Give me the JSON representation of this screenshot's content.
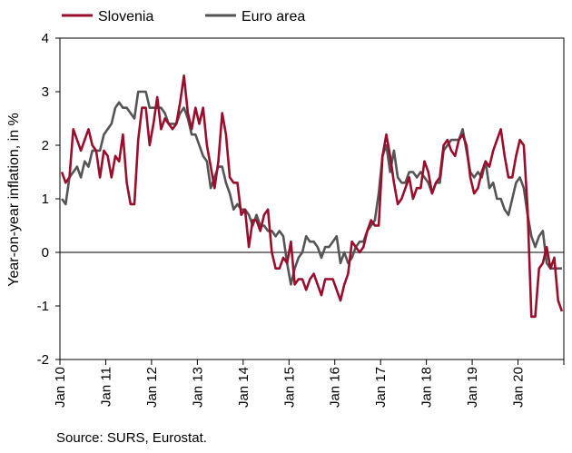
{
  "chart_data": {
    "type": "line",
    "ylabel": "Year-on-year inflation, in %",
    "ylim": [
      -2,
      4
    ],
    "yticks": [
      "4",
      "3",
      "2",
      "1",
      "0",
      "-1",
      "-2"
    ],
    "xticks": [
      "Jan 10",
      "Jan 11",
      "Jan 12",
      "Jan 13",
      "Jan 14",
      "Jan 15",
      "Jan 16",
      "Jan 17",
      "Jan 18",
      "Jan 19",
      "Jan 20"
    ],
    "x_start": "2010-01",
    "x_end": "2020-12",
    "legend_position": "top-left",
    "grid": false,
    "series": [
      {
        "name": "Slovenia",
        "color": "#9b0d2d",
        "values": [
          1.5,
          1.3,
          1.4,
          2.3,
          2.1,
          1.9,
          2.1,
          2.3,
          2.0,
          1.9,
          1.4,
          1.9,
          1.8,
          1.4,
          1.8,
          1.7,
          2.2,
          1.3,
          0.9,
          0.9,
          2.1,
          2.7,
          2.7,
          2.0,
          2.4,
          2.9,
          2.3,
          2.5,
          2.4,
          2.3,
          2.4,
          2.8,
          3.3,
          2.6,
          2.3,
          2.7,
          2.4,
          2.7,
          2.0,
          1.6,
          1.2,
          1.7,
          2.6,
          2.2,
          1.4,
          1.3,
          1.3,
          0.7,
          0.8,
          0.1,
          0.6,
          0.6,
          0.4,
          0.7,
          0.8,
          0.0,
          -0.3,
          -0.3,
          -0.1,
          -0.2,
          0.2,
          -0.6,
          -0.5,
          -0.5,
          -0.7,
          -0.5,
          -0.4,
          -0.6,
          -0.8,
          -0.5,
          -0.5,
          -0.5,
          -0.7,
          -0.9,
          -0.6,
          -0.4,
          0.2,
          0.1,
          0.0,
          0.1,
          0.4,
          0.6,
          0.5,
          0.5,
          1.8,
          2.2,
          1.8,
          1.3,
          0.9,
          1.0,
          1.2,
          1.4,
          1.0,
          1.2,
          1.2,
          1.7,
          1.5,
          1.1,
          1.3,
          1.4,
          2.0,
          2.1,
          1.9,
          1.8,
          2.1,
          2.2,
          2.0,
          1.4,
          1.1,
          1.2,
          1.5,
          1.7,
          1.6,
          1.9,
          2.1,
          2.3,
          1.8,
          1.4,
          1.4,
          1.8,
          2.1,
          2.0,
          0.8,
          -1.2,
          -1.2,
          -0.3,
          -0.2,
          0.1,
          -0.3,
          -0.1,
          -0.9,
          -1.1
        ]
      },
      {
        "name": "Euro area",
        "color": "#555555",
        "values": [
          1.0,
          0.9,
          1.4,
          1.5,
          1.6,
          1.4,
          1.7,
          1.6,
          1.9,
          1.9,
          1.9,
          2.2,
          2.3,
          2.4,
          2.7,
          2.8,
          2.7,
          2.7,
          2.6,
          2.5,
          3.0,
          3.0,
          3.0,
          2.7,
          2.7,
          2.7,
          2.7,
          2.6,
          2.4,
          2.4,
          2.4,
          2.6,
          2.7,
          2.5,
          2.2,
          2.2,
          2.0,
          1.8,
          1.7,
          1.2,
          1.4,
          1.6,
          1.6,
          1.3,
          1.1,
          0.8,
          0.9,
          0.8,
          0.8,
          0.7,
          0.5,
          0.7,
          0.5,
          0.5,
          0.4,
          0.4,
          0.3,
          0.4,
          0.3,
          -0.2,
          -0.6,
          -0.3,
          -0.1,
          0.0,
          0.3,
          0.2,
          0.2,
          0.1,
          -0.1,
          0.1,
          0.1,
          0.2,
          0.3,
          -0.2,
          0.0,
          -0.2,
          -0.1,
          0.1,
          0.2,
          0.2,
          0.4,
          0.5,
          0.6,
          1.1,
          1.8,
          2.0,
          1.5,
          1.9,
          1.4,
          1.3,
          1.3,
          1.5,
          1.5,
          1.4,
          1.5,
          1.4,
          1.3,
          1.1,
          1.3,
          1.3,
          1.9,
          2.0,
          2.1,
          2.1,
          2.1,
          2.3,
          1.9,
          1.5,
          1.4,
          1.5,
          1.4,
          1.7,
          1.2,
          1.3,
          1.0,
          1.0,
          0.8,
          0.7,
          1.0,
          1.3,
          1.4,
          1.2,
          0.7,
          0.3,
          0.1,
          0.3,
          0.4,
          -0.2,
          -0.3,
          -0.3,
          -0.3,
          -0.3
        ]
      }
    ],
    "source": "Source: SURS, Eurostat."
  }
}
